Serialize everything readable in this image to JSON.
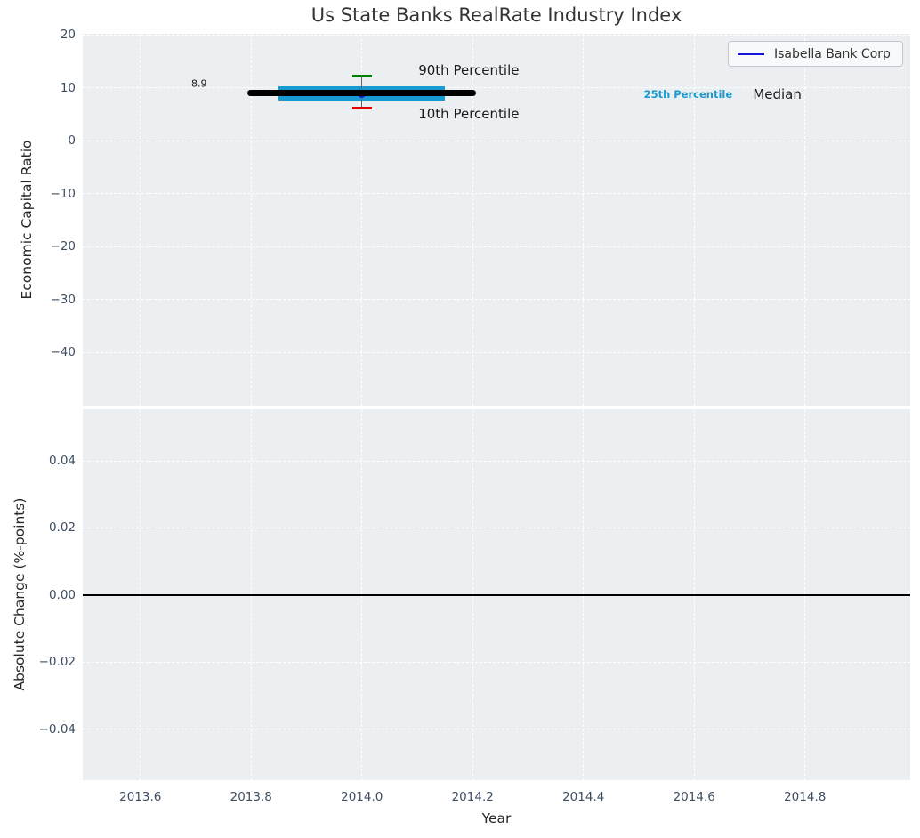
{
  "chart_data": {
    "type": "line",
    "title": "Us State Banks RealRate Industry Index",
    "xlabel": "Year",
    "x_axis": {
      "lim": [
        2013.496,
        2014.99
      ],
      "ticks": [
        2013.6,
        2013.8,
        2014.0,
        2014.2,
        2014.4,
        2014.6,
        2014.8
      ],
      "tick_labels": [
        "2013.6",
        "2013.8",
        "2014.0",
        "2014.2",
        "2014.4",
        "2014.6",
        "2014.8"
      ]
    },
    "legend": {
      "position": "upper right",
      "entries": [
        {
          "label": "Isabella Bank Corp",
          "color": "#1616d9"
        }
      ]
    },
    "colors": {
      "plot_background": "#eceff1",
      "grid": "#ffffff",
      "tick_label": "#3e4f63",
      "axis_label": "#262626",
      "title": "#333333",
      "iqr_band": "#189ad2",
      "p90_cap": "#008000",
      "p10_cap": "#e50000",
      "median_line": "#000000",
      "series_line": "#1616d9"
    },
    "subplots": [
      {
        "name": "economic-capital-ratio",
        "ylabel": "Economic Capital Ratio",
        "ylim": [
          -50,
          20.25
        ],
        "yticks": [
          20,
          10,
          0,
          -10,
          -20,
          -30,
          -40
        ],
        "ytick_labels": [
          "20",
          "10",
          "0",
          "−10",
          "−20",
          "−30",
          "−40"
        ],
        "grid": true,
        "series": [
          {
            "name": "Isabella Bank Corp",
            "type": "line+marker",
            "color": "#1616d9",
            "x": [
              2014.0
            ],
            "y": [
              8.9
            ],
            "last_value_label": "8.9"
          }
        ],
        "industry_stats": {
          "median": {
            "value": 9.0,
            "x_span": [
              2013.8,
              2014.2
            ],
            "color": "#000000",
            "label": "Median"
          },
          "p25_p75_band": {
            "low": 7.7,
            "high": 10.4,
            "x_span": [
              2013.85,
              2014.15
            ],
            "color": "#189ad2",
            "label": "25th Percentile"
          },
          "p90": {
            "value": 12.2,
            "x": 2014.0,
            "cap_color": "#008000",
            "label": "90th Percentile"
          },
          "p10": {
            "value": 6.3,
            "x": 2014.0,
            "cap_color": "#e50000",
            "label": "10th Percentile"
          },
          "whisker_color": "#666666"
        },
        "annotations": [
          {
            "text": "8.9",
            "x": 2013.706,
            "y": 10.8,
            "size": 11,
            "color": "#1a1a1a",
            "align": "center",
            "weight": "normal"
          },
          {
            "text": "90th Percentile",
            "x": 2014.102,
            "y": 13.4,
            "size": 15,
            "color": "#1a1a1a",
            "align": "left",
            "weight": "normal"
          },
          {
            "text": "10th Percentile",
            "x": 2014.102,
            "y": 5.1,
            "size": 15,
            "color": "#1a1a1a",
            "align": "left",
            "weight": "normal"
          },
          {
            "text": "25th Percentile",
            "x": 2014.589,
            "y": 8.8,
            "size": 11.5,
            "color": "#189ad2",
            "align": "center",
            "weight": "bold"
          },
          {
            "text": "Median",
            "x": 2014.75,
            "y": 8.8,
            "size": 15,
            "color": "#1a1a1a",
            "align": "center",
            "weight": "normal"
          }
        ]
      },
      {
        "name": "absolute-change",
        "ylabel": "Absolute Change (%-points)",
        "ylim": [
          -0.0552,
          0.0554
        ],
        "yticks": [
          0.04,
          0.02,
          0,
          -0.02,
          -0.04
        ],
        "ytick_labels": [
          "0.04",
          "0.02",
          "0.00",
          "−0.02",
          "−0.04"
        ],
        "grid": true,
        "zero_line": {
          "value": 0,
          "color": "#000000"
        },
        "series": [],
        "annotations": []
      }
    ]
  }
}
